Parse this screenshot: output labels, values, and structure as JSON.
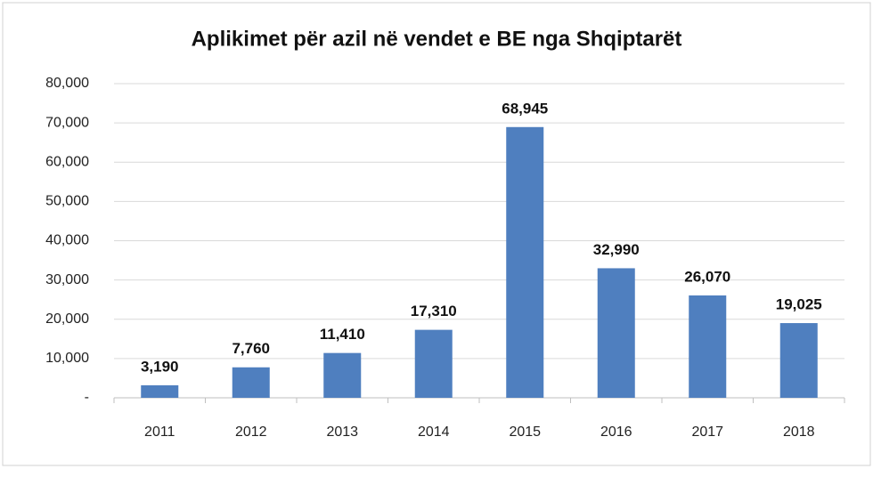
{
  "chart_data": {
    "type": "bar",
    "title": "Aplikimet për azil në vendet e BE nga Shqiptarët",
    "categories": [
      "2011",
      "2012",
      "2013",
      "2014",
      "2015",
      "2016",
      "2017",
      "2018"
    ],
    "values": [
      3190,
      7760,
      11410,
      17310,
      68945,
      32990,
      26070,
      19025
    ],
    "value_labels": [
      "3,190",
      "7,760",
      "11,410",
      "17,310",
      "68,945",
      "32,990",
      "26,070",
      "19,025"
    ],
    "color": "#4f7fbf",
    "ylim": [
      0,
      80000
    ],
    "yticks": [
      {
        "value": 0,
        "label": "-"
      },
      {
        "value": 10000,
        "label": "10,000"
      },
      {
        "value": 20000,
        "label": "20,000"
      },
      {
        "value": 30000,
        "label": "30,000"
      },
      {
        "value": 40000,
        "label": "40,000"
      },
      {
        "value": 50000,
        "label": "50,000"
      },
      {
        "value": 60000,
        "label": "60,000"
      },
      {
        "value": 70000,
        "label": "70,000"
      },
      {
        "value": 80000,
        "label": "80,000"
      }
    ],
    "grid": true
  }
}
